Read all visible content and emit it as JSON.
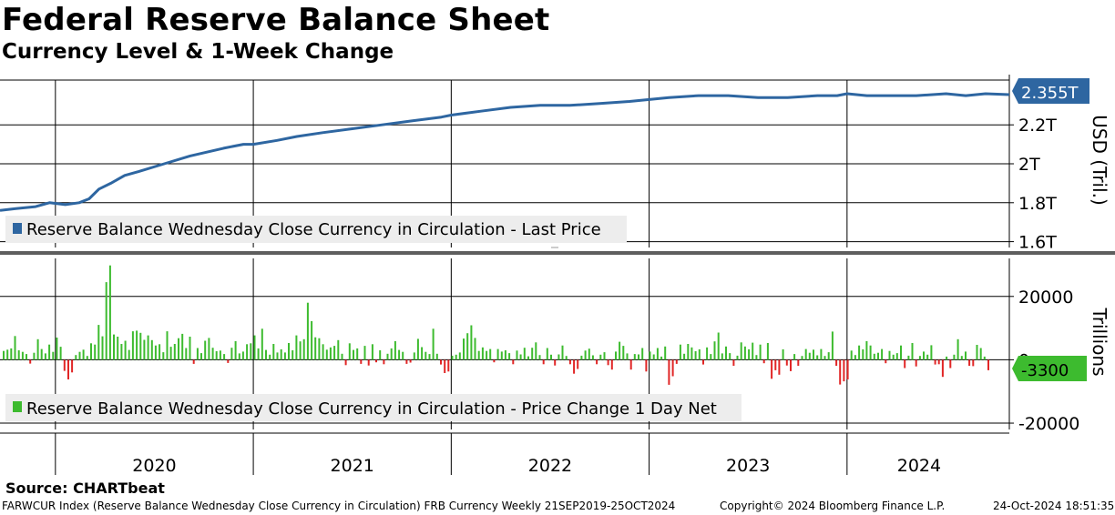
{
  "header": {
    "title": "Federal Reserve Balance Sheet",
    "subtitle": "Currency Level & 1-Week Change"
  },
  "footer": {
    "source": "Source: CHARTbeat",
    "ticker_info": "FARWCUR Index (Reserve Balance Wednesday Close Currency in Circulation) FRB Currency  Weekly 21SEP2019-25OCT2024",
    "copyright": "Copyright© 2024 Bloomberg Finance L.P.",
    "timestamp": "24-Oct-2024 18:51:35"
  },
  "colors": {
    "line": "#2e66a1",
    "positive_bar": "#3dbb2f",
    "negative_bar": "#e12626",
    "legend_bg": "#ededed",
    "last_value_tag": "#2e66a1",
    "change_tag": "#3dbb2f"
  },
  "chart_data": [
    {
      "type": "line",
      "panel": "top",
      "legend": "Reserve Balance Wednesday Close Currency in Circulation - Last Price",
      "ylabel": "USD (Tril.)",
      "ylim": [
        1.57,
        2.43
      ],
      "yticks": [
        1.6,
        1.8,
        2.0,
        2.2
      ],
      "ytick_labels": [
        "1.6T",
        "1.8T",
        "2T",
        "2.2T"
      ],
      "last_value_label": "2.355T",
      "last_value": 2.355,
      "x_start": 2019.72,
      "x_end": 2024.82,
      "x": [
        2019.72,
        2019.8,
        2019.9,
        2019.97,
        2020.05,
        2020.12,
        2020.17,
        2020.22,
        2020.28,
        2020.35,
        2020.42,
        2020.55,
        2020.68,
        2020.85,
        2020.95,
        2021.0,
        2021.12,
        2021.22,
        2021.35,
        2021.5,
        2021.65,
        2021.8,
        2021.95,
        2022.0,
        2022.15,
        2022.3,
        2022.45,
        2022.6,
        2022.75,
        2022.9,
        2023.0,
        2023.1,
        2023.25,
        2023.4,
        2023.55,
        2023.7,
        2023.85,
        2023.95,
        2024.0,
        2024.1,
        2024.2,
        2024.35,
        2024.5,
        2024.6,
        2024.7,
        2024.82
      ],
      "y": [
        1.76,
        1.77,
        1.78,
        1.8,
        1.79,
        1.8,
        1.82,
        1.87,
        1.9,
        1.94,
        1.96,
        2.0,
        2.04,
        2.08,
        2.1,
        2.1,
        2.12,
        2.14,
        2.16,
        2.18,
        2.2,
        2.22,
        2.24,
        2.25,
        2.27,
        2.29,
        2.3,
        2.3,
        2.31,
        2.32,
        2.33,
        2.34,
        2.35,
        2.35,
        2.34,
        2.34,
        2.35,
        2.35,
        2.36,
        2.35,
        2.35,
        2.35,
        2.36,
        2.35,
        2.36,
        2.355
      ]
    },
    {
      "type": "bar",
      "panel": "bottom",
      "legend": "Reserve Balance Wednesday Close Currency in Circulation - Price Change 1 Day Net",
      "ylabel": "Trillions",
      "ylim": [
        -22000,
        32000
      ],
      "yticks": [
        -20000,
        0,
        20000
      ],
      "ytick_labels": [
        "-20000",
        "0",
        "20000"
      ],
      "last_value_label": "-3300",
      "last_value": -3300,
      "x_start": 2019.72,
      "x_end": 2024.82,
      "values": [
        2800,
        3200,
        3600,
        7500,
        3000,
        2500,
        1800,
        -1200,
        2200,
        6500,
        3400,
        2000,
        4800,
        2500,
        7000,
        4100,
        -3500,
        -6200,
        -4000,
        1500,
        2500,
        3200,
        1200,
        5200,
        4800,
        11000,
        7400,
        24500,
        29800,
        8000,
        7300,
        5000,
        6000,
        3100,
        9000,
        9200,
        8500,
        6300,
        7700,
        6200,
        4500,
        4900,
        2400,
        9000,
        4100,
        5000,
        6800,
        8200,
        3700,
        7300,
        -1300,
        3700,
        2100,
        6000,
        6900,
        3800,
        2700,
        2900,
        1800,
        -1000,
        3800,
        5900,
        2000,
        2600,
        4900,
        5200,
        7700,
        3600,
        9800,
        3100,
        1600,
        5000,
        2300,
        3300,
        2300,
        5300,
        3000,
        7700,
        5800,
        6500,
        18000,
        12200,
        7100,
        6800,
        4900,
        3200,
        3900,
        4400,
        6200,
        1900,
        -1700,
        5200,
        3100,
        3600,
        -1300,
        4400,
        -1800,
        4900,
        -800,
        3000,
        -1400,
        1900,
        3600,
        5900,
        3100,
        2500,
        -1300,
        -900,
        2300,
        6600,
        4000,
        2500,
        1800,
        9800,
        1900,
        -1500,
        -4200,
        -3700,
        1300,
        1600,
        2300,
        6700,
        8400,
        10900,
        6900,
        2800,
        3900,
        2800,
        3400,
        -800,
        3400,
        2600,
        3000,
        2100,
        -1400,
        2900,
        1700,
        3800,
        1100,
        3800,
        5500,
        1500,
        -1400,
        3700,
        1600,
        -1800,
        1700,
        4500,
        1200,
        -1400,
        -4400,
        -2900,
        1300,
        2900,
        3500,
        1400,
        -1400,
        1600,
        2400,
        -1700,
        -3100,
        2600,
        5700,
        4400,
        2000,
        -3100,
        1800,
        1700,
        3700,
        -3700,
        2600,
        1700,
        3700,
        1000,
        4200,
        -7900,
        -5200,
        -1300,
        4800,
        1900,
        5000,
        3900,
        2700,
        3300,
        -1500,
        3900,
        1800,
        5800,
        8600,
        2000,
        4200,
        2100,
        -1900,
        1300,
        5500,
        4200,
        3300,
        5400,
        1500,
        4800,
        -1100,
        5300,
        -6000,
        -3300,
        -4700,
        3300,
        -1800,
        -3600,
        1800,
        -1900,
        1200,
        3400,
        2200,
        3200,
        1400,
        3400,
        1200,
        2400,
        8900,
        -1900,
        -7800,
        -6800,
        -6200,
        2900,
        1500,
        4500,
        3300,
        5900,
        4500,
        1900,
        2200,
        3400,
        -1100,
        2800,
        1600,
        2100,
        4500,
        -2600,
        1300,
        5300,
        -2100,
        1200,
        2600,
        1600,
        4600,
        -1500,
        -1400,
        -5400,
        1000,
        -2600,
        1600,
        6500,
        1200,
        2600,
        -1900,
        -2000,
        4700,
        3700,
        1000,
        -3300
      ]
    }
  ],
  "x_axis": {
    "year_labels": [
      "2020",
      "2021",
      "2022",
      "2023",
      "2024"
    ],
    "year_boundaries": [
      2020.0,
      2021.0,
      2022.0,
      2023.0,
      2024.0
    ]
  }
}
